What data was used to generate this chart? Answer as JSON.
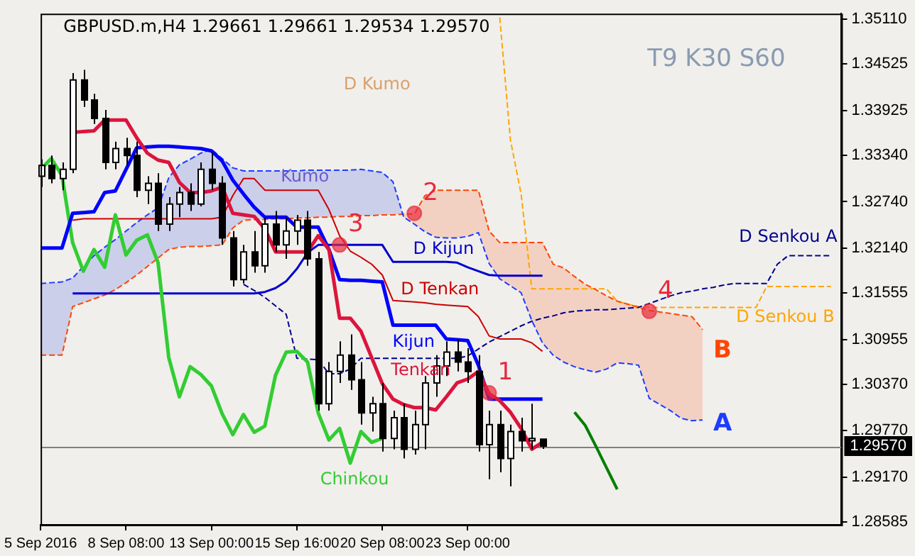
{
  "chart_data": {
    "type": "candlestick",
    "title": "GBPUSD.m,H4 1.29661 1.29661 1.29534 1.29570",
    "categories": [
      "5 Sep 2016",
      null,
      null,
      null,
      null,
      null,
      null,
      null,
      "8 Sep 08:00",
      null,
      null,
      null,
      null,
      null,
      null,
      null,
      "13 Sep 00:00",
      null,
      null,
      null,
      null,
      null,
      null,
      null,
      "15 Sep 16:00",
      null,
      null,
      null,
      null,
      null,
      null,
      null,
      "20 Sep 08:00",
      null,
      null,
      null,
      null,
      null,
      null,
      null,
      "23 Sep 00:00",
      null,
      null,
      null,
      null,
      null,
      null,
      null,
      null,
      null,
      null,
      null,
      null,
      null,
      null,
      null,
      null,
      null,
      null,
      null,
      null,
      null,
      null,
      null,
      null,
      null,
      null,
      null,
      null,
      null,
      null,
      null,
      null,
      null,
      null,
      null
    ],
    "ohlc": [
      [
        1.3307,
        1.3329,
        1.3293,
        1.3321
      ],
      [
        1.3321,
        1.3334,
        1.3298,
        1.3304
      ],
      [
        1.3304,
        1.3325,
        1.3289,
        1.3316
      ],
      [
        1.3316,
        1.3441,
        1.3311,
        1.3432
      ],
      [
        1.3432,
        1.3445,
        1.3397,
        1.3406
      ],
      [
        1.3406,
        1.3414,
        1.3375,
        1.3382
      ],
      [
        1.3382,
        1.3393,
        1.3316,
        1.3325
      ],
      [
        1.3325,
        1.3352,
        1.3316,
        1.3343
      ],
      [
        1.3343,
        1.3357,
        1.3321,
        1.3334
      ],
      [
        1.3334,
        1.3352,
        1.328,
        1.3289
      ],
      [
        1.3289,
        1.3307,
        1.3271,
        1.3298
      ],
      [
        1.3298,
        1.3311,
        1.3236,
        1.3245
      ],
      [
        1.3245,
        1.328,
        1.3236,
        1.3271
      ],
      [
        1.3271,
        1.3293,
        1.3254,
        1.3286
      ],
      [
        1.3286,
        1.3298,
        1.3262,
        1.3271
      ],
      [
        1.3271,
        1.3325,
        1.3268,
        1.3316
      ],
      [
        1.3316,
        1.3338,
        1.3289,
        1.3298
      ],
      [
        1.3298,
        1.3307,
        1.3218,
        1.3227
      ],
      [
        1.3227,
        1.3236,
        1.3164,
        1.3173
      ],
      [
        1.3173,
        1.3218,
        1.3168,
        1.3209
      ],
      [
        1.3209,
        1.3236,
        1.3182,
        1.3191
      ],
      [
        1.3191,
        1.3254,
        1.3182,
        1.3245
      ],
      [
        1.3245,
        1.3262,
        1.3209,
        1.3218
      ],
      [
        1.3218,
        1.3254,
        1.32,
        1.3236
      ],
      [
        1.3236,
        1.3257,
        1.3218,
        1.325
      ],
      [
        1.325,
        1.3262,
        1.3191,
        1.32
      ],
      [
        1.32,
        1.3209,
        1.3003,
        1.3012
      ],
      [
        1.3012,
        1.3066,
        1.3003,
        1.3054
      ],
      [
        1.3054,
        1.3093,
        1.3039,
        1.3075
      ],
      [
        1.3075,
        1.3102,
        1.303,
        1.3043
      ],
      [
        1.3043,
        1.3066,
        1.2985,
        1.3
      ],
      [
        1.3,
        1.3021,
        1.2976,
        1.3012
      ],
      [
        1.3012,
        1.3039,
        1.295,
        1.2967
      ],
      [
        1.2967,
        1.3003,
        1.2953,
        1.2994
      ],
      [
        1.2994,
        1.3012,
        1.2941,
        1.2953
      ],
      [
        1.2953,
        1.3003,
        1.2946,
        1.2985
      ],
      [
        1.2985,
        1.3048,
        1.2953,
        1.3039
      ],
      [
        1.3039,
        1.3075,
        1.3021,
        1.3061
      ],
      [
        1.3061,
        1.3093,
        1.3048,
        1.3079
      ],
      [
        1.3079,
        1.3096,
        1.3054,
        1.3066
      ],
      [
        1.3066,
        1.3084,
        1.3039,
        1.3054
      ],
      [
        1.3054,
        1.3075,
        1.295,
        1.2959
      ],
      [
        1.2959,
        1.3003,
        1.2914,
        1.2985
      ],
      [
        1.2985,
        1.3003,
        1.2923,
        1.2941
      ],
      [
        1.2941,
        1.2985,
        1.2905,
        1.2976
      ],
      [
        1.2976,
        1.2994,
        1.295,
        1.2964
      ],
      [
        1.2964,
        1.3012,
        1.2953,
        1.2967
      ],
      [
        1.29661,
        1.29661,
        1.29534,
        1.2957
      ],
      null,
      null,
      null,
      null,
      null,
      null,
      null,
      null,
      null,
      null,
      null,
      null,
      null,
      null,
      null,
      null,
      null,
      null,
      null,
      null,
      null,
      null,
      null,
      null,
      null,
      null,
      null,
      null
    ],
    "series": [
      {
        "name": "Tenkan",
        "type": "line",
        "color": "#dc143c",
        "values": [
          null,
          null,
          null,
          1.3364,
          1.3365,
          1.3366,
          1.338,
          1.338,
          1.338,
          1.3357,
          1.3337,
          1.3328,
          1.3325,
          1.3299,
          1.3286,
          1.3286,
          1.3288,
          1.3293,
          1.3259,
          1.3257,
          1.3255,
          1.3239,
          1.3209,
          1.3209,
          1.3209,
          1.3209,
          1.323,
          1.3212,
          1.3123,
          1.3123,
          1.3106,
          1.3072,
          1.3038,
          1.3018,
          1.3011,
          1.3007,
          1.3007,
          1.3004,
          1.3021,
          1.3039,
          1.3044,
          1.3054,
          1.3025,
          1.3016,
          1.3001,
          1.298,
          1.2953,
          1.2962,
          null,
          null,
          null,
          null,
          null,
          null,
          null,
          null,
          null,
          null,
          null,
          null,
          null,
          null,
          null,
          null,
          null,
          null,
          null,
          null,
          null,
          null,
          null,
          null,
          null,
          null,
          null,
          null
        ]
      },
      {
        "name": "Kijun",
        "type": "line",
        "color": "#0000ff",
        "values": [
          1.3214,
          1.3214,
          1.3214,
          1.3259,
          1.326,
          1.3261,
          1.3286,
          1.3288,
          1.3316,
          1.3344,
          1.3345,
          1.3346,
          1.3346,
          1.3345,
          1.3344,
          1.3343,
          1.334,
          1.3327,
          1.3302,
          1.3284,
          1.3267,
          1.3254,
          1.3254,
          1.3254,
          1.3241,
          1.3241,
          1.3241,
          1.3212,
          1.3173,
          1.3172,
          1.3172,
          1.3171,
          1.317,
          1.3114,
          1.3114,
          1.3114,
          1.3114,
          1.3114,
          1.3096,
          1.3095,
          1.3094,
          1.3062,
          1.3018,
          1.3018,
          1.3018,
          1.3018,
          1.3018,
          1.3018,
          null,
          null,
          null,
          null,
          null,
          null,
          null,
          null,
          null,
          null,
          null,
          null,
          null,
          null,
          null,
          null,
          null,
          null,
          null,
          null,
          null,
          null,
          null,
          null,
          null,
          null,
          null,
          null
        ]
      },
      {
        "name": "Chinkou",
        "type": "line",
        "color": "#32cd32",
        "values": [
          1.3316,
          1.333,
          1.3308,
          1.3221,
          1.3184,
          1.3212,
          1.3189,
          1.3257,
          1.3205,
          1.3224,
          1.3231,
          1.3195,
          1.3072,
          1.3021,
          1.306,
          1.305,
          1.3035,
          1.2999,
          1.2972,
          1.2998,
          1.2975,
          1.2983,
          1.3049,
          1.3079,
          1.308,
          1.3066,
          1.3,
          1.2965,
          1.298,
          1.2935,
          1.2976,
          1.2962,
          1.2967,
          null,
          null,
          null,
          null,
          null,
          null,
          null,
          null,
          null,
          null,
          null,
          null,
          null,
          null,
          null,
          null,
          null,
          null,
          null,
          null,
          null,
          null,
          null,
          null,
          null,
          null,
          null,
          null,
          null,
          null,
          null,
          null,
          null,
          null,
          null,
          null,
          null,
          null,
          null,
          null,
          null,
          null,
          null
        ]
      },
      {
        "name": "D Tenkan",
        "type": "line",
        "color": "#cc0000",
        "values": [
          null,
          null,
          null,
          1.325,
          1.3252,
          1.3252,
          1.3252,
          1.3252,
          1.3252,
          1.3252,
          1.3252,
          1.3252,
          1.3252,
          1.3252,
          1.3252,
          1.3252,
          1.3252,
          1.3254,
          1.3282,
          1.3304,
          1.3304,
          1.3289,
          1.3289,
          1.3289,
          1.3289,
          1.3289,
          1.3289,
          1.3264,
          1.323,
          1.321,
          1.3202,
          1.3193,
          1.3179,
          1.3146,
          1.3145,
          1.3144,
          1.3143,
          1.3141,
          1.314,
          1.3139,
          1.3138,
          1.3125,
          1.31,
          1.3096,
          1.3096,
          1.3096,
          1.3091,
          1.308,
          null,
          null,
          null,
          null,
          null,
          null,
          null,
          null,
          null,
          null,
          null,
          null,
          null,
          null,
          null,
          null,
          null,
          null,
          null,
          null,
          null,
          null,
          null,
          null,
          null,
          null,
          null,
          null
        ]
      },
      {
        "name": "D Kijun",
        "type": "line",
        "color": "#0000cd",
        "values": [
          null,
          null,
          null,
          1.3155,
          1.3155,
          1.3155,
          1.3155,
          1.3155,
          1.3155,
          1.3155,
          1.3155,
          1.3155,
          1.3155,
          1.3155,
          1.3155,
          1.3155,
          1.3155,
          1.3155,
          1.3155,
          1.3155,
          1.3155,
          1.3157,
          1.3162,
          1.3171,
          1.3187,
          1.3208,
          1.3218,
          1.3218,
          1.3218,
          1.3218,
          1.3218,
          1.3218,
          1.3218,
          1.3196,
          1.3196,
          1.3196,
          1.3196,
          1.3196,
          1.3196,
          1.3195,
          1.3189,
          1.3184,
          1.3179,
          1.3178,
          1.3178,
          1.3178,
          1.3178,
          1.3178,
          null,
          null,
          null,
          null,
          null,
          null,
          null,
          null,
          null,
          null,
          null,
          null,
          null,
          null,
          null,
          null,
          null,
          null,
          null,
          null,
          null,
          null,
          null,
          null,
          null,
          null,
          null,
          null
        ]
      },
      {
        "name": "A",
        "type": "line",
        "color": "#1e3cff",
        "line_style": "dashed",
        "values": [
          1.3168,
          1.3169,
          1.317,
          1.3175,
          1.319,
          1.3204,
          1.3215,
          1.3225,
          1.3236,
          1.3247,
          1.3257,
          1.3266,
          1.3305,
          1.3322,
          1.3329,
          1.3337,
          1.3342,
          1.333,
          1.3318,
          1.3314,
          1.3314,
          1.3314,
          1.3314,
          1.3314,
          1.3314,
          1.3315,
          1.3315,
          1.3315,
          1.3315,
          1.3315,
          1.3316,
          1.3314,
          1.3312,
          1.33,
          1.3254,
          1.3245,
          1.3235,
          1.3228,
          1.3227,
          1.3227,
          1.3229,
          1.3234,
          1.3194,
          1.3174,
          1.3165,
          1.3156,
          1.312,
          1.3091,
          1.3075,
          1.3066,
          1.306,
          1.3056,
          1.3053,
          1.3057,
          1.3065,
          1.3064,
          1.3062,
          1.3019,
          1.3011,
          1.3003,
          1.2993,
          1.299,
          1.2991,
          null,
          null,
          null,
          null,
          null,
          null,
          null,
          null,
          null,
          null,
          null,
          null,
          null
        ]
      },
      {
        "name": "B",
        "type": "line",
        "color": "#ff4500",
        "line_style": "dashed",
        "values": [
          1.3075,
          1.3075,
          1.3075,
          1.3138,
          1.3143,
          1.3148,
          1.3153,
          1.316,
          1.3169,
          1.3179,
          1.319,
          1.3201,
          1.3212,
          1.3215,
          1.3216,
          1.3216,
          1.3217,
          1.3218,
          1.324,
          1.325,
          1.3251,
          1.3251,
          1.3252,
          1.3252,
          1.3253,
          1.3253,
          1.3254,
          1.3254,
          1.3255,
          1.3255,
          1.3256,
          1.3256,
          1.3257,
          1.3257,
          1.3258,
          1.3258,
          1.3282,
          1.3289,
          1.3289,
          1.3289,
          1.3289,
          1.3289,
          1.3236,
          1.3221,
          1.3221,
          1.3221,
          1.3221,
          1.3221,
          1.3193,
          1.3188,
          1.3177,
          1.3167,
          1.316,
          1.3152,
          1.3145,
          1.3141,
          1.3137,
          1.3133,
          1.3131,
          1.3129,
          1.3127,
          1.3125,
          1.3108,
          null,
          null,
          null,
          null,
          null,
          null,
          null,
          null,
          null,
          null,
          null,
          null,
          null
        ]
      },
      {
        "name": "D Senkou A",
        "type": "line",
        "color": "#00008b",
        "line_style": "dashed",
        "values": [
          null,
          null,
          null,
          null,
          null,
          null,
          null,
          null,
          null,
          null,
          null,
          null,
          null,
          null,
          null,
          null,
          null,
          null,
          null,
          1.3167,
          1.3159,
          1.315,
          1.3139,
          1.3128,
          1.3071,
          1.307,
          1.3069,
          1.3051,
          1.3051,
          1.3057,
          1.3071,
          1.3071,
          1.3071,
          1.3071,
          1.3071,
          1.3071,
          1.3071,
          1.3071,
          1.3071,
          1.3071,
          1.3074,
          1.3083,
          1.3092,
          1.3099,
          1.3106,
          1.3113,
          1.3119,
          1.3123,
          1.3126,
          1.313,
          1.3132,
          1.3133,
          1.3134,
          1.3134,
          1.3135,
          1.3136,
          1.3137,
          1.3142,
          1.3147,
          1.3152,
          1.3156,
          1.3158,
          1.3161,
          1.3163,
          1.3166,
          1.3168,
          1.3168,
          1.3168,
          1.3168,
          1.3193,
          1.3204,
          1.3204,
          1.3204,
          1.3204,
          1.3204,
          null
        ]
      },
      {
        "name": "D Senkou B",
        "type": "line",
        "color": "#ffa500",
        "line_style": "dashed",
        "values": [
          null,
          null,
          null,
          null,
          null,
          null,
          null,
          null,
          null,
          null,
          null,
          null,
          null,
          null,
          null,
          null,
          null,
          null,
          null,
          null,
          null,
          null,
          null,
          null,
          null,
          null,
          null,
          null,
          null,
          null,
          null,
          null,
          null,
          null,
          null,
          null,
          null,
          null,
          null,
          null,
          null,
          null,
          null,
          1.3513,
          1.3354,
          1.3284,
          1.3161,
          1.3161,
          1.3161,
          1.3161,
          1.3161,
          1.3161,
          1.3161,
          1.3161,
          1.3145,
          1.3141,
          1.3138,
          1.3137,
          1.3137,
          1.3137,
          1.3137,
          1.3137,
          1.3137,
          1.3137,
          1.3137,
          1.3137,
          1.3137,
          1.3137,
          1.3164,
          1.3164,
          1.3164,
          1.3164,
          1.3164,
          1.3164,
          1.3164,
          null
        ]
      },
      {
        "type": "line",
        "color": "#008000",
        "values": [
          null,
          null,
          null,
          null,
          null,
          null,
          null,
          null,
          null,
          null,
          null,
          null,
          null,
          null,
          null,
          null,
          null,
          null,
          null,
          null,
          null,
          null,
          null,
          null,
          null,
          null,
          null,
          null,
          null,
          null,
          null,
          null,
          null,
          null,
          null,
          null,
          null,
          null,
          null,
          null,
          null,
          null,
          null,
          null,
          null,
          null,
          null,
          null,
          null,
          null,
          1.3001,
          1.2984,
          1.2957,
          1.2929,
          1.2901,
          null,
          null,
          null,
          null,
          null,
          null,
          null,
          null,
          null,
          null,
          null,
          null,
          null,
          null,
          null,
          null,
          null,
          null,
          null,
          null,
          null
        ]
      },
      {
        "type": "scatter",
        "color": "#e8283c",
        "marker": "circle",
        "values": [
          null,
          null,
          null,
          null,
          null,
          null,
          null,
          null,
          null,
          null,
          null,
          null,
          null,
          null,
          null,
          null,
          null,
          null,
          null,
          null,
          null,
          null,
          null,
          null,
          null,
          null,
          null,
          null,
          1.3218,
          null,
          null,
          null,
          null,
          null,
          null,
          1.3259,
          null,
          null,
          null,
          null,
          null,
          null,
          1.3026,
          null,
          null,
          null,
          null,
          null,
          null,
          null,
          null,
          null,
          null,
          null,
          null,
          null,
          null,
          1.3132,
          null,
          null,
          null,
          null,
          null,
          null,
          null,
          null,
          null,
          null,
          null,
          null,
          null,
          null,
          null,
          null,
          null,
          null
        ]
      }
    ],
    "annotations": [
      "T9 K30 S60",
      "Kumo",
      "D Kumo",
      "3",
      "2",
      "1",
      "4"
    ],
    "ref_lines": [
      {
        "axis": "y",
        "value": 1.2957,
        "label": "1.29570",
        "color": "#808080"
      }
    ],
    "ylim": [
      1.2855,
      1.3518
    ],
    "yticks": [
      {
        "value": 1.3511,
        "label": "1.35110"
      },
      1.34525,
      1.33925,
      {
        "value": 1.3334,
        "label": "1.33340"
      },
      {
        "value": 1.3274,
        "label": "1.32740"
      },
      {
        "value": 1.3214,
        "label": "1.32140"
      },
      1.31555,
      1.30955,
      {
        "value": 1.3037,
        "label": "1.30370"
      },
      {
        "value": 1.2977,
        "label": "1.29770"
      },
      {
        "value": 1.2917,
        "label": "1.29170"
      },
      1.28585
    ],
    "grid": false,
    "legend": false,
    "marker": "none"
  }
}
